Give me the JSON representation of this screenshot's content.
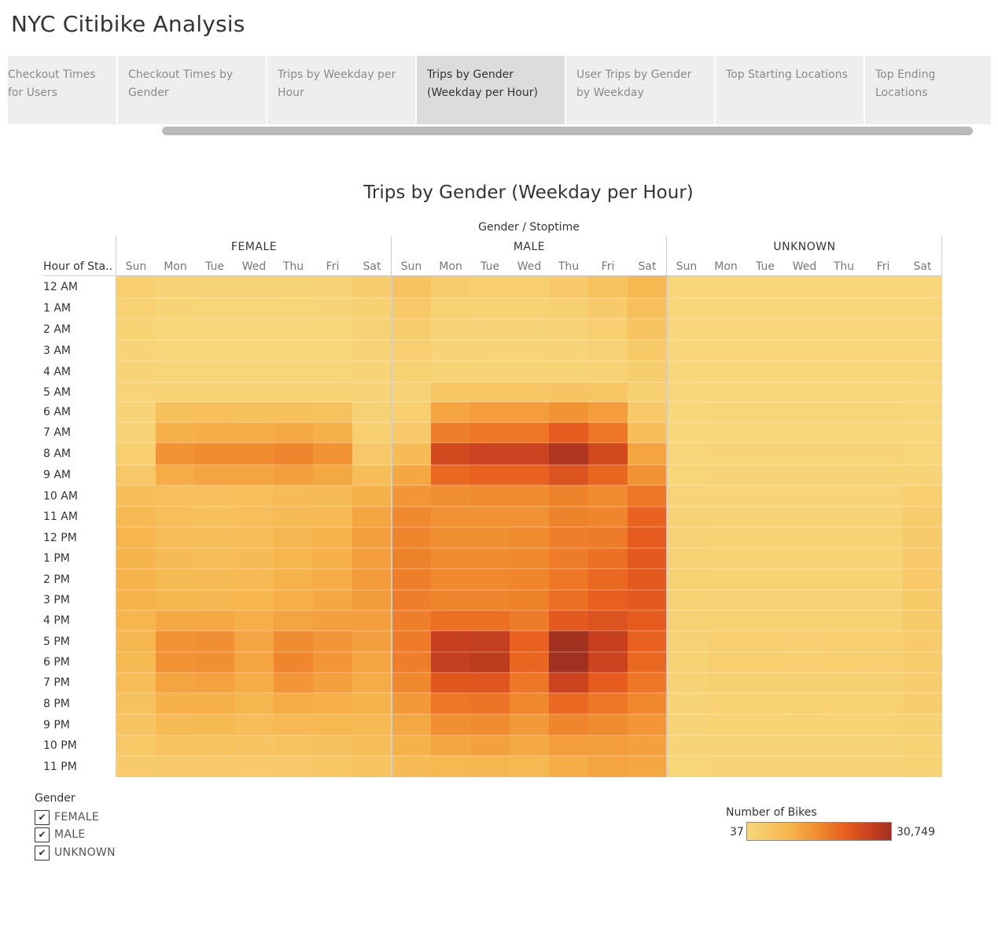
{
  "story_title": "NYC Citibike Analysis",
  "tabs": [
    {
      "label": "Checkout Times for Users",
      "active": false
    },
    {
      "label": "Checkout Times by Gender",
      "active": false
    },
    {
      "label": "Trips by Weekday per Hour",
      "active": false
    },
    {
      "label": "Trips by Gender (Weekday per Hour)",
      "active": true
    },
    {
      "label": "User Trips by Gender by Weekday",
      "active": false
    },
    {
      "label": "Top Starting Locations",
      "active": false
    },
    {
      "label": "Top Ending Locations",
      "active": false
    }
  ],
  "legend": {
    "title": "Gender",
    "items": [
      {
        "label": "FEMALE",
        "checked": true
      },
      {
        "label": "MALE",
        "checked": true
      },
      {
        "label": "UNKNOWN",
        "checked": true
      }
    ],
    "check_mark": "✔"
  },
  "color_legend": {
    "title": "Number of Bikes",
    "min_label": "37",
    "max_label": "30,749",
    "colors": [
      "#f7d77a",
      "#f6b44c",
      "#f08a2e",
      "#e85f1e",
      "#c9411f",
      "#a0301f"
    ]
  },
  "chart_data": {
    "type": "heatmap",
    "title": "Trips by Gender (Weekday per Hour)",
    "column_header": "Gender / Stoptime",
    "row_header": "Hour of Sta..",
    "groups": [
      "FEMALE",
      "MALE",
      "UNKNOWN"
    ],
    "days": [
      "Sun",
      "Mon",
      "Tue",
      "Wed",
      "Thu",
      "Fri",
      "Sat"
    ],
    "rows": [
      "12 AM",
      "1 AM",
      "2 AM",
      "3 AM",
      "4 AM",
      "5 AM",
      "6 AM",
      "7 AM",
      "8 AM",
      "9 AM",
      "10 AM",
      "11 AM",
      "12 PM",
      "1 PM",
      "2 PM",
      "3 PM",
      "4 PM",
      "5 PM",
      "6 PM",
      "7 PM",
      "8 PM",
      "9 PM",
      "10 PM",
      "11 PM"
    ],
    "value_range": [
      37,
      30749
    ],
    "values": [
      [
        1500,
        700,
        500,
        500,
        600,
        900,
        1800,
        3500,
        2000,
        1500,
        1500,
        2500,
        3800,
        5500,
        100,
        60,
        50,
        50,
        50,
        60,
        100
      ],
      [
        1100,
        400,
        300,
        300,
        300,
        500,
        1300,
        2600,
        1000,
        800,
        800,
        1200,
        2200,
        4200,
        80,
        40,
        40,
        40,
        40,
        50,
        80
      ],
      [
        800,
        300,
        200,
        200,
        200,
        300,
        900,
        1900,
        600,
        500,
        500,
        700,
        1400,
        3200,
        60,
        37,
        37,
        37,
        37,
        40,
        60
      ],
      [
        600,
        200,
        200,
        200,
        200,
        200,
        700,
        1400,
        500,
        400,
        400,
        500,
        900,
        2400,
        50,
        37,
        37,
        37,
        37,
        37,
        50
      ],
      [
        500,
        200,
        200,
        200,
        200,
        200,
        500,
        1100,
        600,
        600,
        600,
        600,
        700,
        1600,
        50,
        37,
        37,
        37,
        37,
        37,
        50
      ],
      [
        400,
        800,
        800,
        800,
        800,
        800,
        500,
        900,
        3000,
        3000,
        3000,
        3300,
        3000,
        1300,
        40,
        60,
        60,
        60,
        60,
        60,
        40
      ],
      [
        600,
        4000,
        4200,
        4100,
        3900,
        3800,
        900,
        1500,
        8500,
        9500,
        9500,
        11000,
        9500,
        2500,
        60,
        200,
        200,
        200,
        200,
        200,
        60
      ],
      [
        900,
        6800,
        7200,
        7200,
        7800,
        6800,
        1500,
        2500,
        14000,
        15000,
        15000,
        19000,
        15000,
        4500,
        100,
        300,
        300,
        300,
        300,
        300,
        100
      ],
      [
        1500,
        11000,
        12000,
        12000,
        13000,
        11000,
        2600,
        5000,
        23000,
        24000,
        24000,
        28500,
        23000,
        8500,
        200,
        500,
        500,
        500,
        500,
        500,
        200
      ],
      [
        2600,
        7500,
        8500,
        8300,
        9300,
        8000,
        4500,
        8000,
        17000,
        18000,
        18000,
        21000,
        17500,
        11000,
        300,
        600,
        600,
        600,
        600,
        600,
        500
      ],
      [
        4500,
        4200,
        4200,
        4300,
        5000,
        5000,
        6800,
        10500,
        11500,
        12000,
        12000,
        13500,
        12000,
        15000,
        500,
        600,
        600,
        600,
        600,
        600,
        1500
      ],
      [
        5500,
        4200,
        4000,
        4200,
        5000,
        5300,
        8400,
        12500,
        11000,
        11000,
        11000,
        13500,
        13000,
        18000,
        700,
        700,
        700,
        700,
        700,
        700,
        2000
      ],
      [
        6000,
        4800,
        4500,
        4800,
        5800,
        6300,
        9300,
        13000,
        11500,
        11500,
        12000,
        14000,
        14500,
        19000,
        900,
        800,
        800,
        800,
        800,
        800,
        2300
      ],
      [
        6200,
        5000,
        4700,
        4900,
        6000,
        6800,
        9500,
        13500,
        12000,
        12000,
        12500,
        14500,
        16000,
        19500,
        1000,
        800,
        800,
        800,
        800,
        800,
        2500
      ],
      [
        6300,
        5200,
        5000,
        5300,
        6400,
        7200,
        9700,
        14000,
        12500,
        12500,
        13000,
        15000,
        17000,
        19500,
        1000,
        800,
        800,
        800,
        800,
        800,
        2500
      ],
      [
        6300,
        5900,
        5700,
        6000,
        7100,
        8000,
        9700,
        14000,
        13000,
        13000,
        13500,
        16000,
        18500,
        19500,
        1000,
        900,
        900,
        900,
        900,
        900,
        2400
      ],
      [
        6000,
        7800,
        7900,
        7000,
        8500,
        9000,
        9300,
        14000,
        16000,
        16000,
        14500,
        19500,
        21000,
        19000,
        900,
        1100,
        1100,
        1100,
        1100,
        1100,
        2300
      ],
      [
        5600,
        11000,
        11500,
        8500,
        12000,
        10500,
        8900,
        14500,
        25000,
        25500,
        18000,
        30500,
        25000,
        18000,
        900,
        1500,
        1500,
        1400,
        1500,
        1500,
        2200
      ],
      [
        5200,
        11000,
        11500,
        8300,
        13000,
        10500,
        8300,
        14000,
        25500,
        26500,
        17500,
        30749,
        24000,
        17000,
        800,
        1500,
        1500,
        1400,
        1500,
        1400,
        2000
      ],
      [
        4700,
        8500,
        8800,
        7400,
        10500,
        9000,
        7500,
        12500,
        20000,
        20500,
        15000,
        24000,
        19000,
        15000,
        700,
        1300,
        1300,
        1200,
        1300,
        1200,
        1800
      ],
      [
        3800,
        6600,
        6800,
        5800,
        7300,
        7000,
        6300,
        10000,
        15000,
        15500,
        12500,
        17000,
        15000,
        12500,
        600,
        1100,
        1100,
        1000,
        1100,
        1100,
        1600
      ],
      [
        3200,
        5000,
        5200,
        4600,
        5300,
        5500,
        5300,
        8000,
        11500,
        12000,
        10000,
        13000,
        12000,
        10500,
        500,
        800,
        800,
        800,
        800,
        800,
        1300
      ],
      [
        2700,
        3500,
        3600,
        3300,
        3700,
        4000,
        4400,
        6500,
        8500,
        9000,
        7800,
        9500,
        9500,
        9000,
        400,
        600,
        600,
        600,
        600,
        600,
        1100
      ],
      [
        2100,
        2300,
        2300,
        2200,
        2500,
        3000,
        3500,
        5000,
        5500,
        5800,
        5500,
        7200,
        8400,
        8000,
        300,
        400,
        400,
        400,
        400,
        400,
        800
      ]
    ]
  }
}
